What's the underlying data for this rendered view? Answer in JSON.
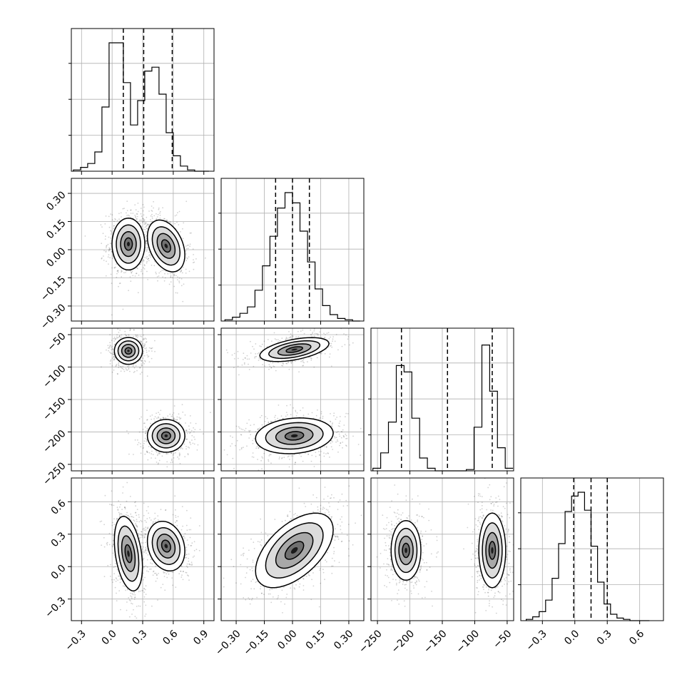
{
  "chart_data": {
    "type": "corner",
    "grid": true,
    "parameters": [
      {
        "range": [
          -0.4,
          1.0
        ],
        "ticks": [
          "−0.3",
          "0.0",
          "0.3",
          "0.6",
          "0.9"
        ],
        "tick_values": [
          -0.3,
          0.0,
          0.3,
          0.6,
          0.9
        ],
        "quantiles": [
          0.11,
          0.31,
          0.59
        ],
        "hist_bins": [
          -0.38,
          -0.31,
          -0.24,
          -0.17,
          -0.1,
          -0.03,
          0.04,
          0.11,
          0.18,
          0.25,
          0.32,
          0.39,
          0.46,
          0.53,
          0.6,
          0.67,
          0.74,
          0.81,
          0.88,
          0.95
        ],
        "hist_values": [
          0.01,
          0.03,
          0.06,
          0.15,
          0.5,
          1.0,
          1.0,
          0.69,
          0.36,
          0.55,
          0.78,
          0.81,
          0.6,
          0.3,
          0.12,
          0.04,
          0.01,
          0.0,
          0.0
        ]
      },
      {
        "range": [
          -0.38,
          0.38
        ],
        "ticks": [
          "−0.30",
          "−0.15",
          "0.00",
          "0.15",
          "0.30"
        ],
        "tick_values": [
          -0.3,
          -0.15,
          0.0,
          0.15,
          0.3
        ],
        "quantiles": [
          -0.09,
          0.0,
          0.09
        ],
        "hist_bins": [
          -0.36,
          -0.32,
          -0.28,
          -0.24,
          -0.2,
          -0.16,
          -0.12,
          -0.08,
          -0.04,
          0.0,
          0.04,
          0.08,
          0.12,
          0.16,
          0.2,
          0.24,
          0.28,
          0.32,
          0.36
        ],
        "hist_values": [
          0.01,
          0.03,
          0.06,
          0.11,
          0.24,
          0.43,
          0.66,
          0.88,
          1.0,
          0.92,
          0.7,
          0.46,
          0.25,
          0.12,
          0.05,
          0.02,
          0.01,
          0.0
        ]
      },
      {
        "range": [
          -260,
          -40
        ],
        "ticks": [
          "−250",
          "−200",
          "−150",
          "−100",
          "−50"
        ],
        "tick_values": [
          -250,
          -200,
          -150,
          -100,
          -50
        ],
        "quantiles": [
          -213,
          -142,
          -73
        ],
        "hist_bins": [
          -257,
          -245,
          -233,
          -221,
          -209,
          -197,
          -185,
          -173,
          -161,
          -149,
          -137,
          -125,
          -113,
          -101,
          -89,
          -77,
          -65,
          -53,
          -41
        ],
        "hist_values": [
          0.02,
          0.14,
          0.38,
          0.82,
          0.77,
          0.41,
          0.1,
          0.02,
          0.0,
          0.0,
          0.0,
          0.0,
          0.01,
          0.34,
          0.98,
          0.62,
          0.18,
          0.02
        ]
      },
      {
        "range": [
          -0.5,
          0.82
        ],
        "ticks": [
          "−0.3",
          "0.0",
          "0.3",
          "0.6"
        ],
        "tick_values": [
          -0.3,
          0.0,
          0.3,
          0.6
        ],
        "quantiles": [
          -0.01,
          0.15,
          0.3
        ],
        "hist_bins": [
          -0.45,
          -0.39,
          -0.33,
          -0.27,
          -0.21,
          -0.15,
          -0.09,
          -0.03,
          0.03,
          0.09,
          0.15,
          0.21,
          0.27,
          0.33,
          0.39,
          0.45,
          0.51,
          0.57,
          0.63,
          0.69
        ],
        "hist_values": [
          0.01,
          0.03,
          0.07,
          0.16,
          0.33,
          0.6,
          0.85,
          0.97,
          1.0,
          0.86,
          0.58,
          0.3,
          0.13,
          0.05,
          0.02,
          0.01,
          0.0,
          0.0,
          0.0
        ]
      }
    ],
    "pairs": [
      {
        "row": 1,
        "col": 0,
        "clusters": [
          {
            "cx": 0.16,
            "cy": 0.03,
            "sx": 0.07,
            "sy": 0.06,
            "rho": 0.0
          },
          {
            "cx": 0.53,
            "cy": 0.02,
            "sx": 0.08,
            "sy": 0.06,
            "rho": -0.35
          }
        ]
      },
      {
        "row": 2,
        "col": 0,
        "clusters": [
          {
            "cx": 0.16,
            "cy": -75,
            "sx": 0.06,
            "sy": 9,
            "rho": 0.0
          },
          {
            "cx": 0.53,
            "cy": -206,
            "sx": 0.08,
            "sy": 11,
            "rho": 0.0
          }
        ]
      },
      {
        "row": 2,
        "col": 1,
        "clusters": [
          {
            "cx": 0.01,
            "cy": -73,
            "sx": 0.08,
            "sy": 8,
            "rho": 0.5
          },
          {
            "cx": 0.01,
            "cy": -206,
            "sx": 0.09,
            "sy": 12,
            "rho": 0.15
          }
        ]
      },
      {
        "row": 3,
        "col": 0,
        "clusters": [
          {
            "cx": 0.16,
            "cy": 0.12,
            "sx": 0.06,
            "sy": 0.15,
            "rho": -0.35
          },
          {
            "cx": 0.53,
            "cy": 0.19,
            "sx": 0.08,
            "sy": 0.1,
            "rho": -0.2
          }
        ]
      },
      {
        "row": 3,
        "col": 1,
        "clusters": [
          {
            "cx": 0.01,
            "cy": 0.15,
            "sx": 0.09,
            "sy": 0.15,
            "rho": 0.55
          }
        ]
      },
      {
        "row": 3,
        "col": 2,
        "clusters": [
          {
            "cx": -206,
            "cy": 0.15,
            "sx": 10,
            "sy": 0.12,
            "rho": 0.0
          },
          {
            "cx": -73,
            "cy": 0.15,
            "sx": 9,
            "sy": 0.15,
            "rho": 0.0
          }
        ]
      }
    ]
  }
}
